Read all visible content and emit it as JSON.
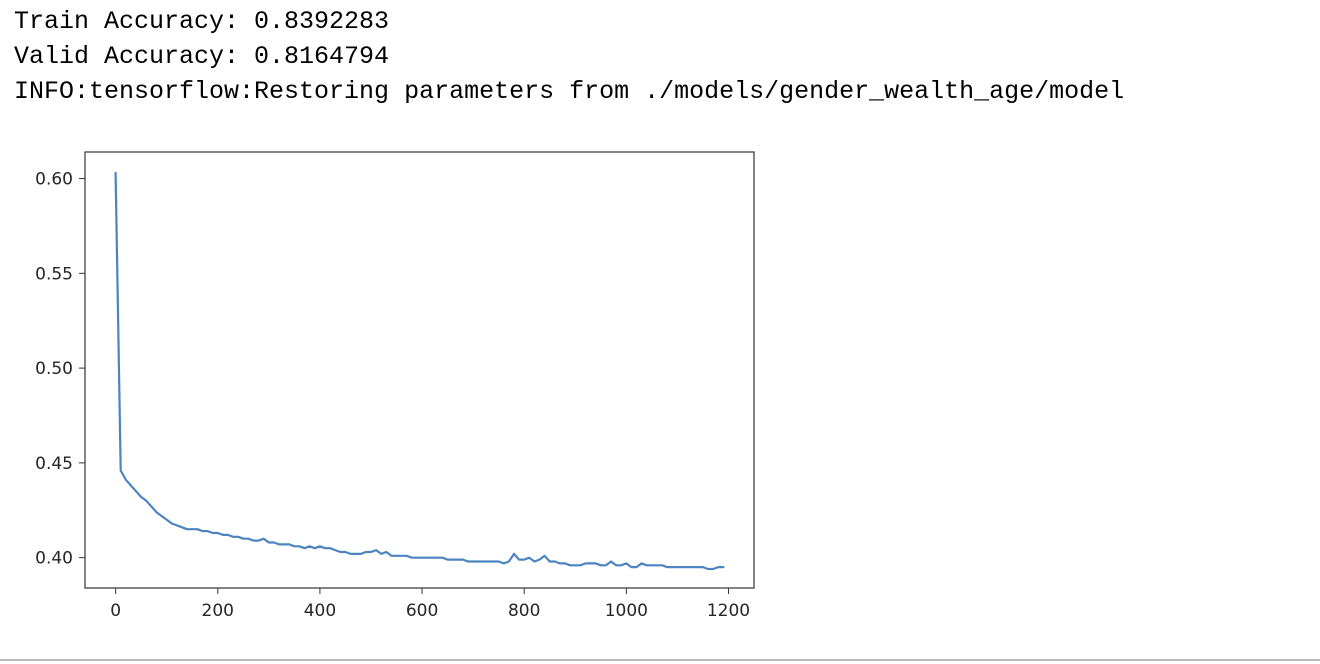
{
  "output": {
    "lines": [
      "Train Accuracy: 0.8392283",
      "Valid Accuracy: 0.8164794",
      "INFO:tensorflow:Restoring parameters from ./models/gender_wealth_age/model"
    ]
  },
  "chart_data": {
    "type": "line",
    "title": "",
    "xlabel": "",
    "ylabel": "",
    "xlim": [
      -60,
      1250
    ],
    "ylim": [
      0.384,
      0.614
    ],
    "xticks": [
      0,
      200,
      400,
      600,
      800,
      1000,
      1200
    ],
    "xtick_labels": [
      "0",
      "200",
      "400",
      "600",
      "800",
      "1000",
      "1200"
    ],
    "yticks": [
      0.4,
      0.45,
      0.5,
      0.55,
      0.6
    ],
    "ytick_labels": [
      "0.40",
      "0.45",
      "0.50",
      "0.55",
      "0.60"
    ],
    "grid": false,
    "legend": "none",
    "series": [
      {
        "color": "#4c84c1",
        "x": [
          0,
          10,
          20,
          30,
          40,
          50,
          60,
          70,
          80,
          90,
          100,
          110,
          120,
          130,
          140,
          150,
          160,
          170,
          180,
          190,
          200,
          210,
          220,
          230,
          240,
          250,
          260,
          270,
          280,
          290,
          300,
          310,
          320,
          330,
          340,
          350,
          360,
          370,
          380,
          390,
          400,
          410,
          420,
          430,
          440,
          450,
          460,
          470,
          480,
          490,
          500,
          510,
          520,
          530,
          540,
          550,
          560,
          570,
          580,
          590,
          600,
          610,
          620,
          630,
          640,
          650,
          660,
          670,
          680,
          690,
          700,
          710,
          720,
          730,
          740,
          750,
          760,
          770,
          780,
          790,
          800,
          810,
          820,
          830,
          840,
          850,
          860,
          870,
          880,
          890,
          900,
          910,
          920,
          930,
          940,
          950,
          960,
          970,
          980,
          990,
          1000,
          1010,
          1020,
          1030,
          1040,
          1050,
          1060,
          1070,
          1080,
          1090,
          1100,
          1110,
          1120,
          1130,
          1140,
          1150,
          1160,
          1170,
          1180,
          1190
        ],
        "y": [
          0.603,
          0.446,
          0.441,
          0.438,
          0.435,
          0.432,
          0.43,
          0.427,
          0.424,
          0.422,
          0.42,
          0.418,
          0.417,
          0.416,
          0.415,
          0.415,
          0.415,
          0.414,
          0.414,
          0.413,
          0.413,
          0.412,
          0.412,
          0.411,
          0.411,
          0.41,
          0.41,
          0.409,
          0.409,
          0.41,
          0.408,
          0.408,
          0.407,
          0.407,
          0.407,
          0.406,
          0.406,
          0.405,
          0.406,
          0.405,
          0.406,
          0.405,
          0.405,
          0.404,
          0.403,
          0.403,
          0.402,
          0.402,
          0.402,
          0.403,
          0.403,
          0.404,
          0.402,
          0.403,
          0.401,
          0.401,
          0.401,
          0.401,
          0.4,
          0.4,
          0.4,
          0.4,
          0.4,
          0.4,
          0.4,
          0.399,
          0.399,
          0.399,
          0.399,
          0.398,
          0.398,
          0.398,
          0.398,
          0.398,
          0.398,
          0.398,
          0.397,
          0.398,
          0.402,
          0.399,
          0.399,
          0.4,
          0.398,
          0.399,
          0.401,
          0.398,
          0.398,
          0.397,
          0.397,
          0.396,
          0.396,
          0.396,
          0.397,
          0.397,
          0.397,
          0.396,
          0.396,
          0.398,
          0.396,
          0.396,
          0.397,
          0.395,
          0.395,
          0.397,
          0.396,
          0.396,
          0.396,
          0.396,
          0.395,
          0.395,
          0.395,
          0.395,
          0.395,
          0.395,
          0.395,
          0.395,
          0.394,
          0.394,
          0.395,
          0.395
        ]
      }
    ]
  }
}
